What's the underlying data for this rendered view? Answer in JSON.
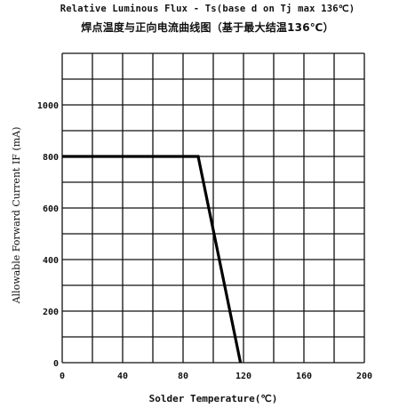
{
  "chart_data": {
    "type": "line",
    "title": "Relative Luminous Flux - Ts(base d on Tj max 136℃)",
    "subtitle": "焊点温度与正向电流曲线图（基于最大结温136℃）",
    "xlabel": "Solder Temperature(℃)",
    "ylabel": "Allowable Forward Current IF (mA)",
    "xlim": [
      0,
      200
    ],
    "ylim": [
      0,
      1200
    ],
    "xticks": [
      0,
      40,
      80,
      120,
      160,
      200
    ],
    "yticks": [
      0,
      200,
      400,
      600,
      800,
      1000
    ],
    "grid": true,
    "series": [
      {
        "x": [
          0,
          90,
          118
        ],
        "y": [
          800,
          800,
          0
        ]
      }
    ],
    "line_color": "#000000"
  }
}
